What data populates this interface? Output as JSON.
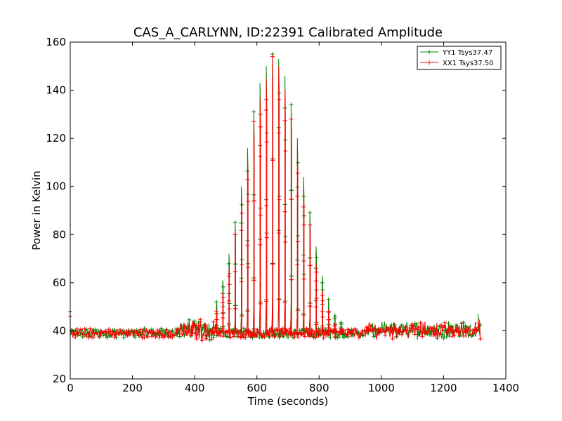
{
  "chart_data": {
    "type": "line",
    "title": "CAS_A_CARLYNN, ID:22391 Calibrated Amplitude",
    "xlabel": "Time (seconds)",
    "ylabel": "Power in Kelvin",
    "xlim": [
      0,
      1400
    ],
    "ylim": [
      20,
      160
    ],
    "xticks": [
      0,
      200,
      400,
      600,
      800,
      1000,
      1200,
      1400
    ],
    "yticks": [
      20,
      40,
      60,
      80,
      100,
      120,
      140,
      160
    ],
    "grid": false,
    "legend_position": "top-right",
    "marker": "+",
    "baseline": 39,
    "scan_times": [
      470,
      490,
      510,
      530,
      550,
      570,
      590,
      610,
      630,
      650,
      670,
      690,
      710,
      730,
      750,
      770,
      790,
      810,
      830,
      850,
      870
    ],
    "series": [
      {
        "name": "YY1 Tsys37.47",
        "color": "#008000",
        "peaks": [
          52,
          61,
          72,
          85,
          100,
          116,
          131,
          143,
          150,
          155,
          153,
          146,
          134,
          120,
          104,
          89,
          75,
          63,
          53,
          47,
          44
        ]
      },
      {
        "name": "XX1 Tsys37.50",
        "color": "#ff0000",
        "peaks": [
          48,
          56,
          66,
          80,
          96,
          112,
          127,
          137,
          145,
          154,
          150,
          140,
          128,
          115,
          99,
          84,
          68,
          57,
          48,
          43,
          41
        ]
      }
    ]
  }
}
